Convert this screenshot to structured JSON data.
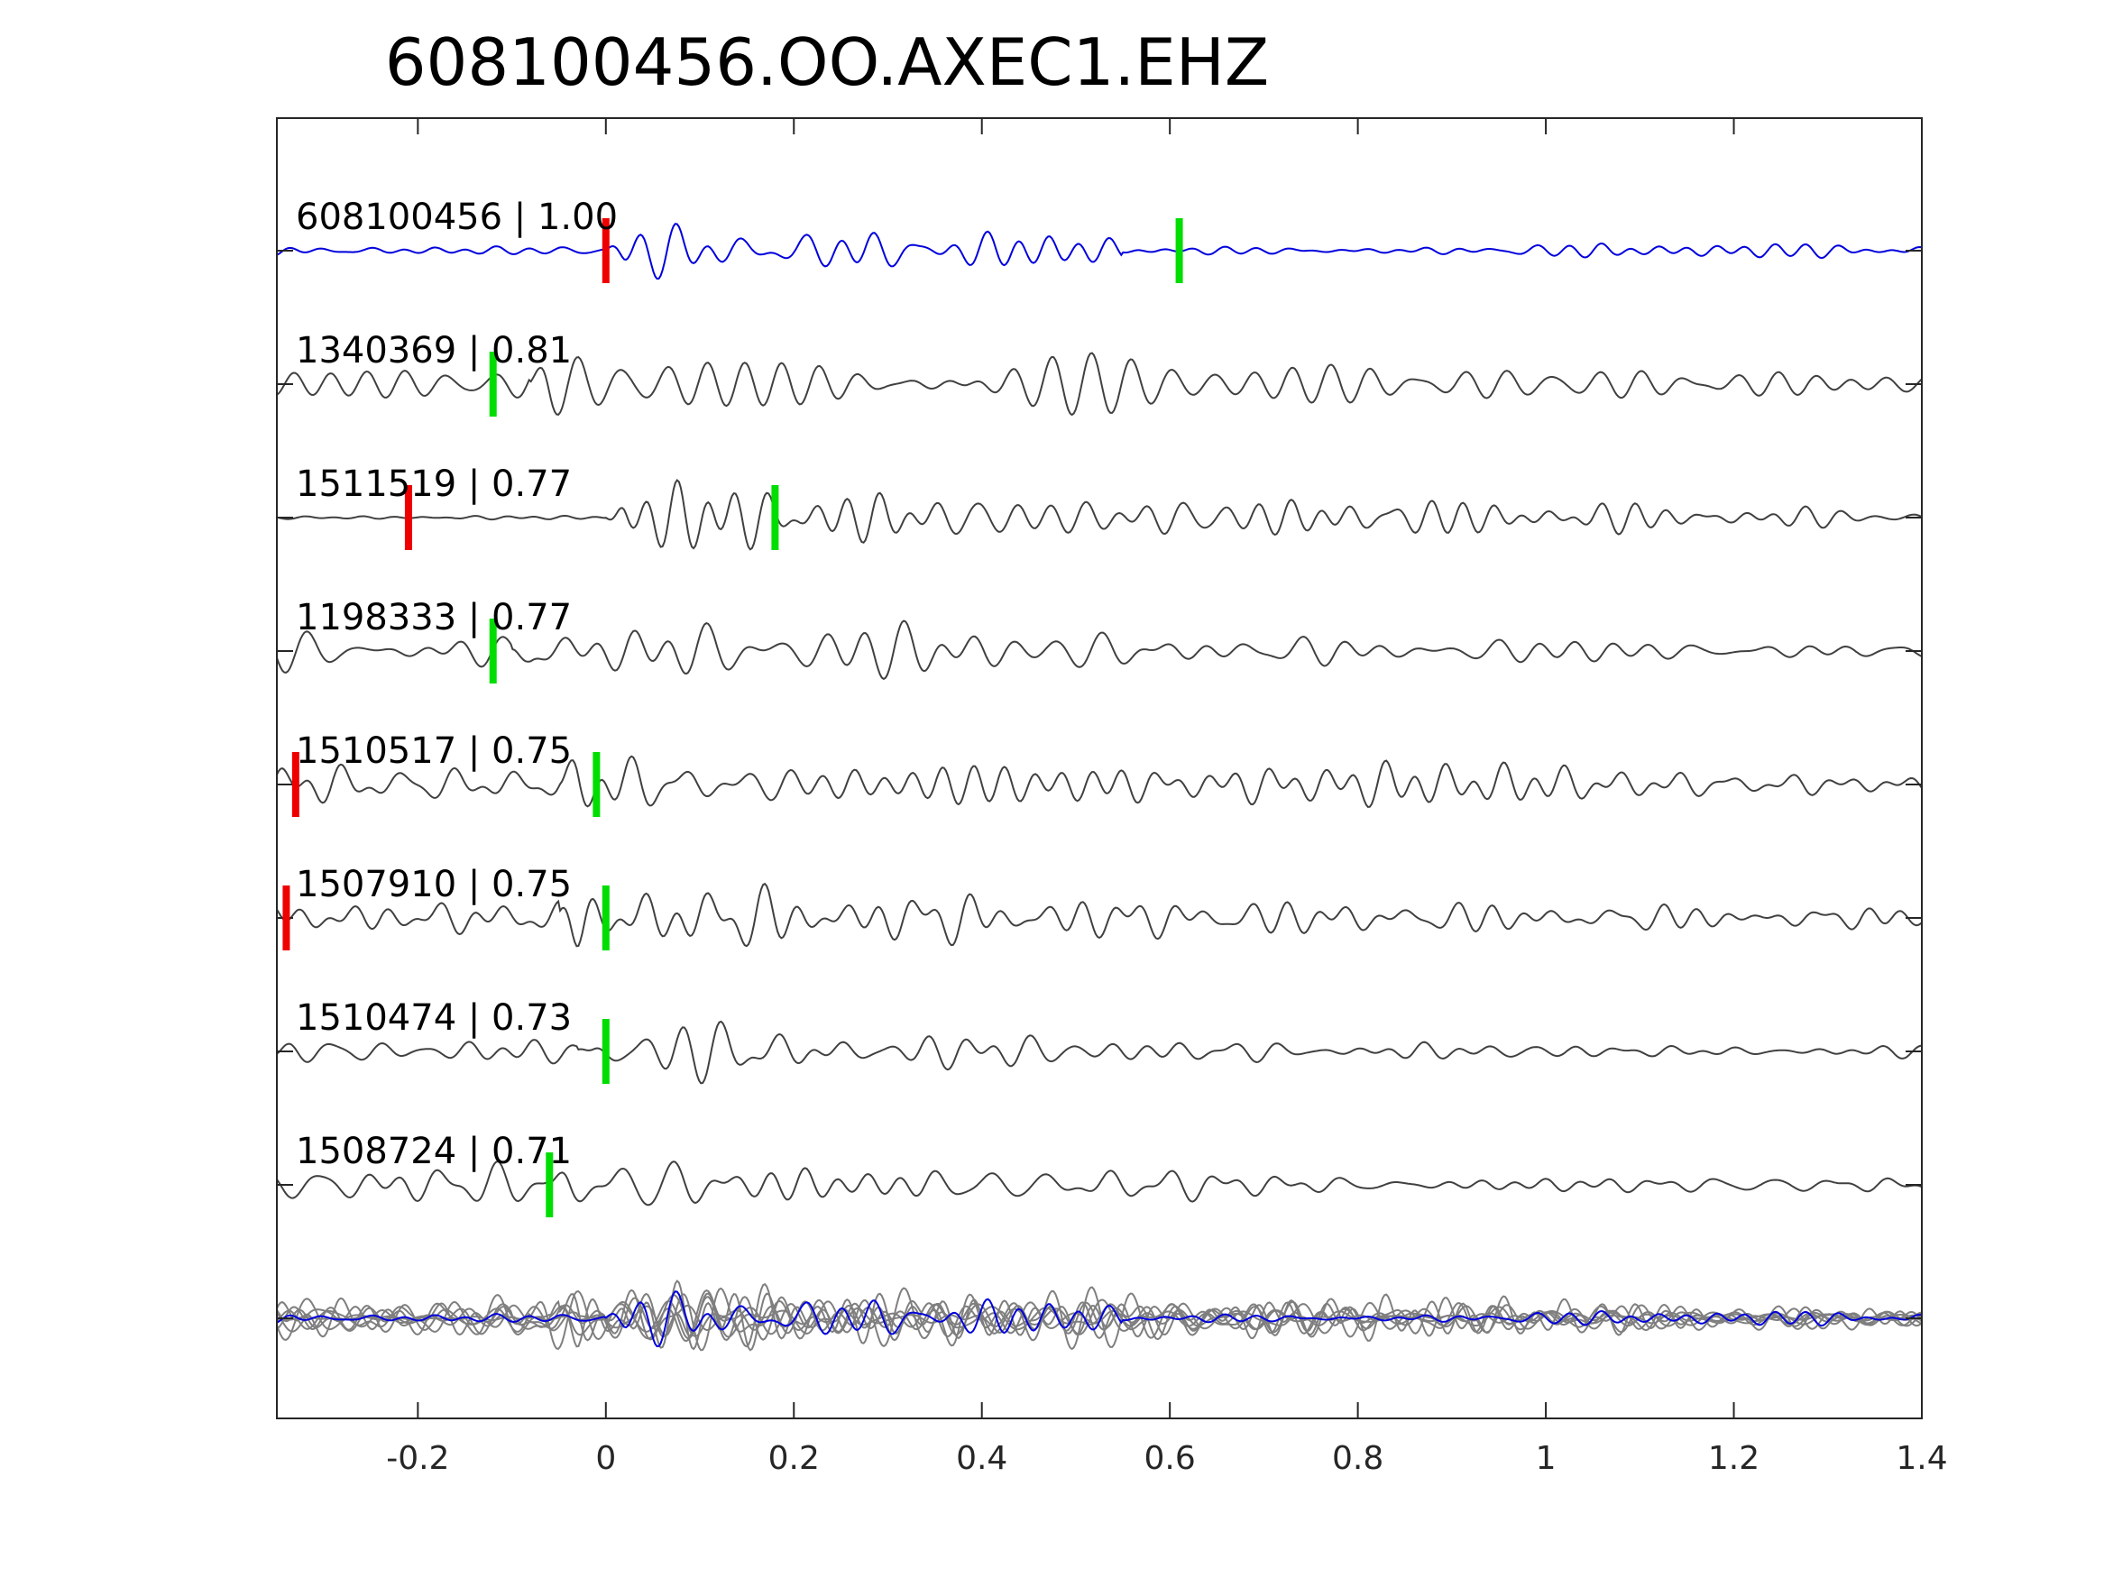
{
  "chart_data": {
    "type": "line",
    "title": "608100456.OO.AXEC1.EHZ",
    "xlabel": "",
    "ylabel": "",
    "xlim": [
      -0.35,
      1.4
    ],
    "xticks": [
      -0.2,
      0,
      0.2,
      0.4,
      0.6,
      0.8,
      1,
      1.2,
      1.4
    ],
    "xtick_labels": [
      "-0.2",
      "0",
      "0.2",
      "0.4",
      "0.6",
      "0.8",
      "1",
      "1.2",
      "1.4"
    ],
    "grid": false,
    "colors": {
      "master": "#0000dd",
      "trace": "#404040",
      "overlay": "#7f7f7f",
      "p_pick": "#ee0000",
      "s_pick": "#00dd00",
      "axes": "#262626"
    },
    "series": [
      {
        "name": "608100456 | 1.00",
        "id": "608100456",
        "cc": 1.0,
        "master": true,
        "p_pick": 0.0,
        "s_pick": 0.61,
        "onset": 0.0,
        "pre_amp": 0.12,
        "peak_amp": 1.0,
        "freq": 25,
        "coda": 0.45,
        "seed": 1
      },
      {
        "name": "1340369 | 0.81",
        "id": "1340369",
        "cc": 0.81,
        "master": false,
        "p_pick": null,
        "s_pick": -0.12,
        "onset": -0.08,
        "pre_amp": 0.55,
        "peak_amp": 0.9,
        "freq": 22,
        "coda": 1.2,
        "seed": 2
      },
      {
        "name": "1511519 | 0.77",
        "id": "1511519",
        "cc": 0.77,
        "master": false,
        "p_pick": -0.21,
        "s_pick": 0.18,
        "onset": 0.0,
        "pre_amp": 0.05,
        "peak_amp": 1.0,
        "freq": 23,
        "coda": 0.9,
        "seed": 3
      },
      {
        "name": "1198333 | 0.77",
        "id": "1198333",
        "cc": 0.77,
        "master": false,
        "p_pick": null,
        "s_pick": -0.12,
        "onset": -0.1,
        "pre_amp": 0.45,
        "peak_amp": 1.0,
        "freq": 22,
        "coda": 0.6,
        "seed": 4
      },
      {
        "name": "1510517 | 0.75",
        "id": "1510517",
        "cc": 0.75,
        "master": false,
        "p_pick": -0.33,
        "s_pick": -0.01,
        "onset": -0.05,
        "pre_amp": 0.55,
        "peak_amp": 1.0,
        "freq": 23,
        "coda": 0.8,
        "seed": 5
      },
      {
        "name": "1507910 | 0.75",
        "id": "1507910",
        "cc": 0.75,
        "master": false,
        "p_pick": -0.34,
        "s_pick": 0.0,
        "onset": -0.05,
        "pre_amp": 0.5,
        "peak_amp": 1.0,
        "freq": 22,
        "coda": 0.7,
        "seed": 6
      },
      {
        "name": "1510474 | 0.73",
        "id": "1510474",
        "cc": 0.73,
        "master": false,
        "p_pick": null,
        "s_pick": 0.0,
        "onset": -0.03,
        "pre_amp": 0.35,
        "peak_amp": 1.0,
        "freq": 22,
        "coda": 0.45,
        "seed": 7
      },
      {
        "name": "1508724 | 0.71",
        "id": "1508724",
        "cc": 0.71,
        "master": false,
        "p_pick": null,
        "s_pick": -0.06,
        "onset": -0.06,
        "pre_amp": 0.5,
        "peak_amp": 0.9,
        "freq": 22,
        "coda": 0.55,
        "seed": 8
      }
    ],
    "overlay": {
      "description_in_figure": "",
      "includes_all_series": true
    }
  }
}
